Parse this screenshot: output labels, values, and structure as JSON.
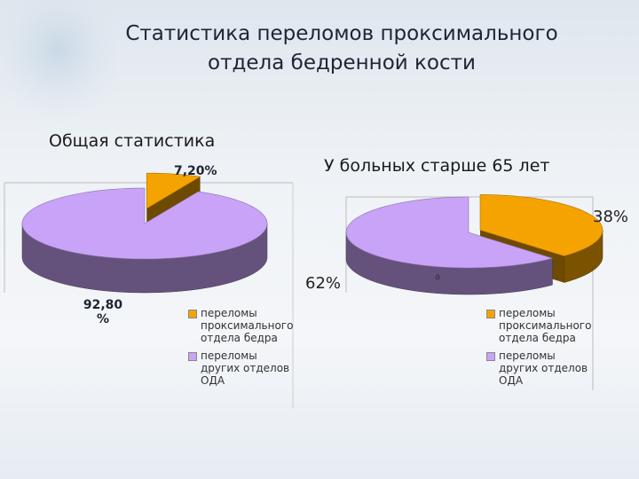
{
  "title": "Статистика переломов проксимального отдела бедренной кости",
  "chart_data": [
    {
      "type": "pie",
      "title": "Общая статистика",
      "categories": [
        "переломы проксимального отдела бедра",
        "переломы других отделов ОДА"
      ],
      "values": [
        7.2,
        92.8
      ],
      "value_labels": [
        "7,20%",
        "92,80 %"
      ],
      "colors": [
        "#f5a300",
        "#c9a3f7"
      ]
    },
    {
      "type": "pie",
      "title": "У больных старше 65 лет",
      "categories": [
        "переломы проксимального отдела бедра",
        "переломы других отделов ОДА"
      ],
      "values": [
        38,
        62
      ],
      "value_labels": [
        "38%",
        "62%"
      ],
      "colors": [
        "#f5a300",
        "#c9a3f7"
      ],
      "annotation": "а"
    }
  ]
}
